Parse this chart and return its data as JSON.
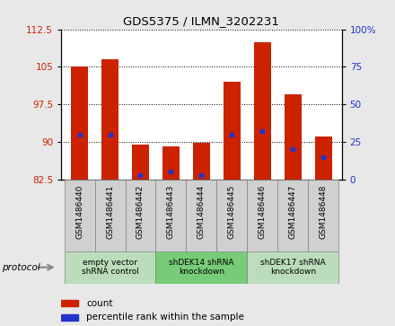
{
  "title": "GDS5375 / ILMN_3202231",
  "samples": [
    "GSM1486440",
    "GSM1486441",
    "GSM1486442",
    "GSM1486443",
    "GSM1486444",
    "GSM1486445",
    "GSM1486446",
    "GSM1486447",
    "GSM1486448"
  ],
  "count_values": [
    105.0,
    106.5,
    89.5,
    89.0,
    89.8,
    102.0,
    110.0,
    99.5,
    91.0
  ],
  "percentile_values": [
    30,
    30,
    3,
    5,
    3,
    30,
    32,
    20,
    15
  ],
  "bar_bottom": 82.5,
  "ylim": [
    82.5,
    112.5
  ],
  "y2lim": [
    0,
    100
  ],
  "yticks": [
    82.5,
    90,
    97.5,
    105,
    112.5
  ],
  "y2ticks": [
    0,
    25,
    50,
    75,
    100
  ],
  "bar_color": "#cc2200",
  "dot_color": "#2233cc",
  "groups": [
    {
      "label": "empty vector\nshRNA control",
      "start": 0,
      "end": 3,
      "color": "#bbddbb"
    },
    {
      "label": "shDEK14 shRNA\nknockdown",
      "start": 3,
      "end": 6,
      "color": "#77cc77"
    },
    {
      "label": "shDEK17 shRNA\nknockdown",
      "start": 6,
      "end": 9,
      "color": "#bbddbb"
    }
  ],
  "protocol_label": "protocol",
  "legend_count_label": "count",
  "legend_pct_label": "percentile rank within the sample",
  "bar_width": 0.55,
  "background_color": "#e8e8e8",
  "plot_bg_color": "#ffffff",
  "sample_box_color": "#d0d0d0"
}
